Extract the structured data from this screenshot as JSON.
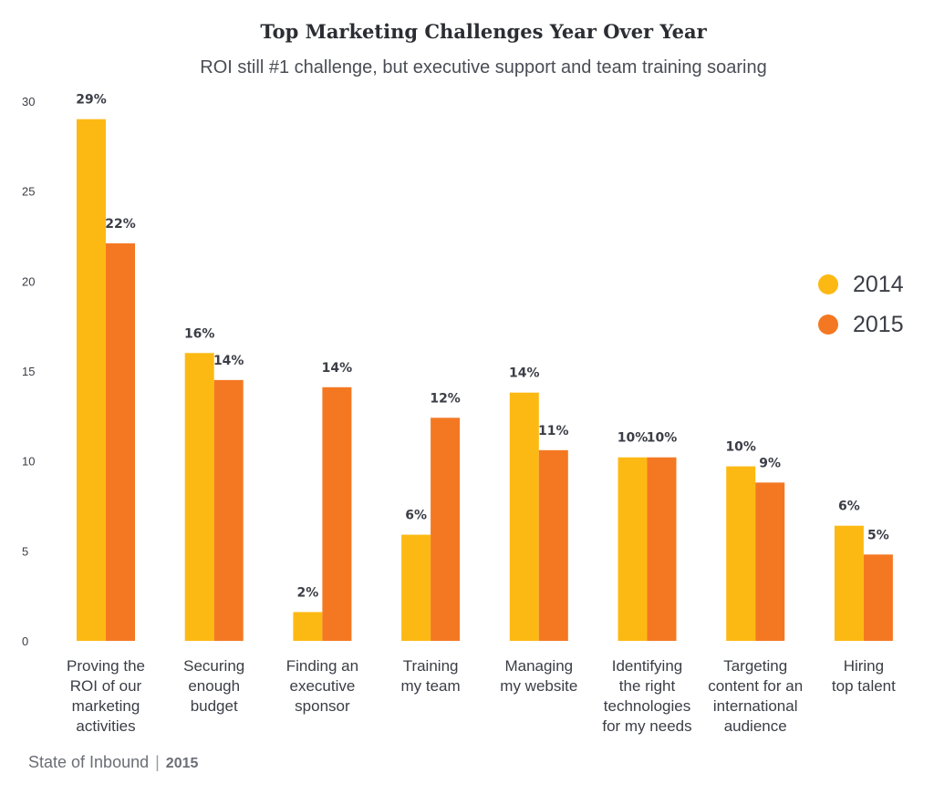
{
  "chart_data": {
    "type": "bar",
    "title": "Top Marketing Challenges Year Over Year",
    "subtitle": "ROI still #1 challenge, but executive support and team training soaring",
    "ylim": [
      0,
      30
    ],
    "yticks": [
      0,
      5,
      10,
      15,
      20,
      25,
      30
    ],
    "grid": false,
    "legend_position": "right",
    "categories": [
      [
        "Proving the",
        "ROI of our",
        "marketing",
        "activities"
      ],
      [
        "Securing",
        "enough",
        "budget"
      ],
      [
        "Finding an",
        "executive",
        "sponsor"
      ],
      [
        "Training",
        "my team"
      ],
      [
        "Managing",
        "my website"
      ],
      [
        "Identifying",
        "the right",
        "technologies",
        "for my needs"
      ],
      [
        "Targeting",
        "content for an",
        "international",
        "audience"
      ],
      [
        "Hiring",
        "top talent"
      ]
    ],
    "series": [
      {
        "name": "2014",
        "color": "#FDB913",
        "values": [
          29,
          16,
          1.6,
          5.9,
          13.8,
          10.2,
          9.7,
          6.4
        ],
        "labels": [
          "29%",
          "16%",
          "2%",
          "6%",
          "14%",
          "10%",
          "10%",
          "6%"
        ]
      },
      {
        "name": "2015",
        "color": "#F47822",
        "values": [
          22.1,
          14.5,
          14.1,
          12.4,
          10.6,
          10.2,
          8.8,
          4.8
        ],
        "labels": [
          "22%",
          "14%",
          "14%",
          "12%",
          "11%",
          "10%",
          "9%",
          "5%"
        ]
      }
    ]
  },
  "footer": {
    "source": "State of Inbound",
    "separator": "|",
    "year": "2015"
  }
}
